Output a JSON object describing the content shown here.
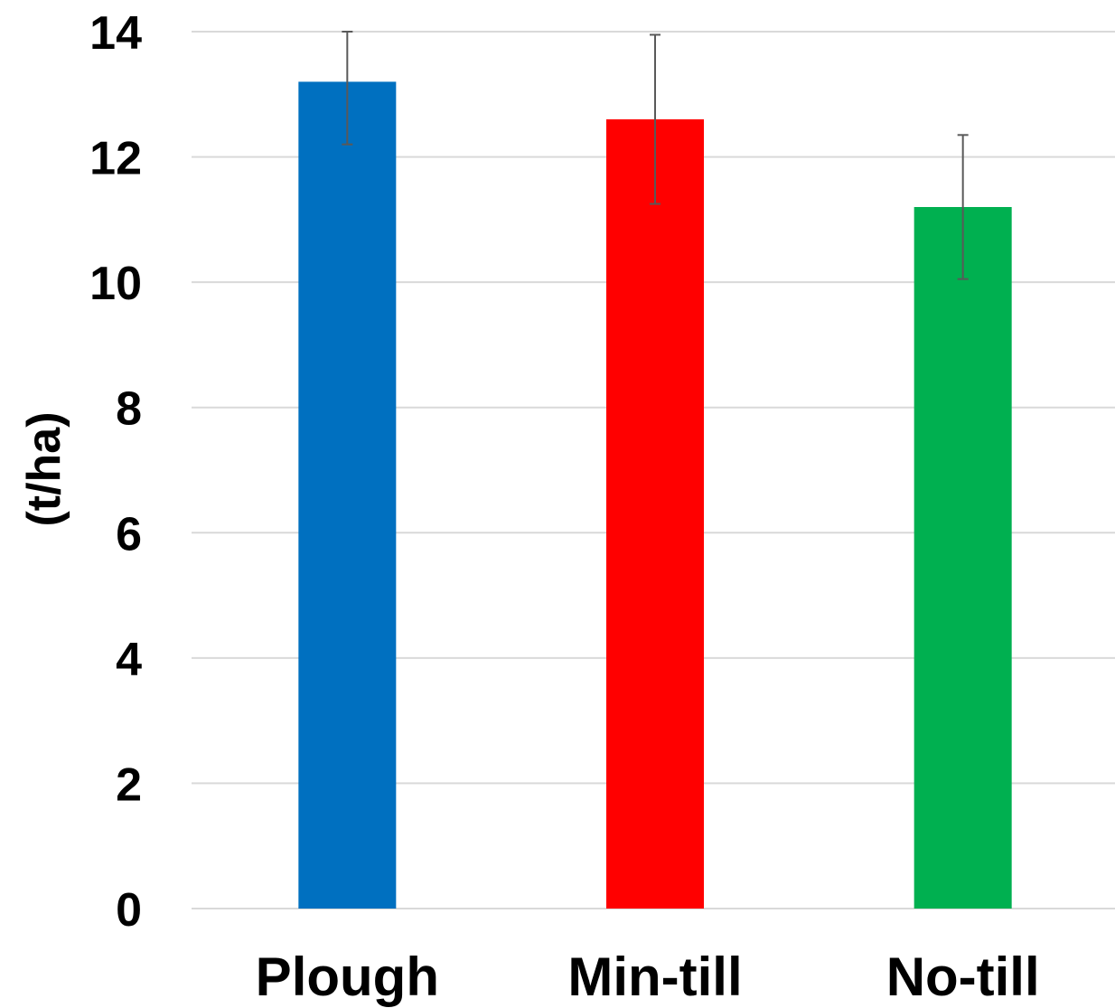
{
  "chart_data": {
    "type": "bar",
    "title": "",
    "xlabel": "",
    "ylabel": "(t/ha)",
    "categories": [
      "Plough",
      "Min-till",
      "No-till"
    ],
    "values": [
      13.2,
      12.6,
      11.2
    ],
    "error": [
      1.0,
      1.35,
      1.15
    ],
    "colors": [
      "#0070c0",
      "#ff0000",
      "#00b050"
    ],
    "ylim": [
      0,
      14
    ],
    "yticks": [
      0,
      2,
      4,
      6,
      8,
      10,
      12,
      14
    ],
    "grid": true,
    "legend": "none"
  }
}
